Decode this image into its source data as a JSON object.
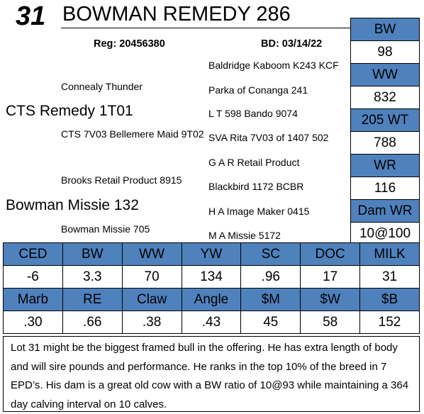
{
  "header": {
    "lot_number": "31",
    "animal_name": "BOWMAN REMEDY 286",
    "reg": "Reg: 20456380",
    "bd": "BD: 03/14/22"
  },
  "pedigree": {
    "sire": "CTS Remedy 1T01",
    "sire_sire": "Connealy Thunder",
    "sire_dam": "CTS 7V03 Bellemere Maid 9T02",
    "sire_sire_sire": "Baldridge Kaboom K243 KCF",
    "sire_sire_dam": "Parka of Conanga 241",
    "sire_dam_sire": "L T 598 Bando 9074",
    "sire_dam_dam": "SVA Rita 7V03 of 1407 502",
    "dam": "Bowman Missie 132",
    "dam_sire": "Brooks Retail Product 8915",
    "dam_dam": "Bowman Missie 705",
    "dam_sire_sire": "G A R Retail Product",
    "dam_sire_dam": "Blackbird 1172 BCBR",
    "dam_dam_sire": "H A Image Maker 0415",
    "dam_dam_dam": "M A Missie 5172"
  },
  "performance": [
    {
      "label": "BW",
      "value": "98"
    },
    {
      "label": "WW",
      "value": "832"
    },
    {
      "label": "205 WT",
      "value": "788"
    },
    {
      "label": "WR",
      "value": "116"
    },
    {
      "label": "Dam WR",
      "value": "10@100"
    }
  ],
  "epd_row1": {
    "headers": [
      "CED",
      "BW",
      "WW",
      "YW",
      "SC",
      "DOC",
      "MILK"
    ],
    "values": [
      "-6",
      "3.3",
      "70",
      "134",
      ".96",
      "17",
      "31"
    ]
  },
  "epd_row2": {
    "headers": [
      "Marb",
      "RE",
      "Claw",
      "Angle",
      "$M",
      "$W",
      "$B"
    ],
    "values": [
      ".30",
      ".66",
      ".38",
      ".43",
      "45",
      "58",
      "152"
    ]
  },
  "description": "Lot 31 might be the biggest framed bull in the offering.  He has extra length of body and will sire pounds and performance. He ranks in the top 10% of the breed in 7 EPD’s.  His dam is a great old cow with a BW ratio of 10@93 while maintaining a 364 day calving interval on 10 calves.",
  "colors": {
    "header_fill": "#4f81bd"
  }
}
